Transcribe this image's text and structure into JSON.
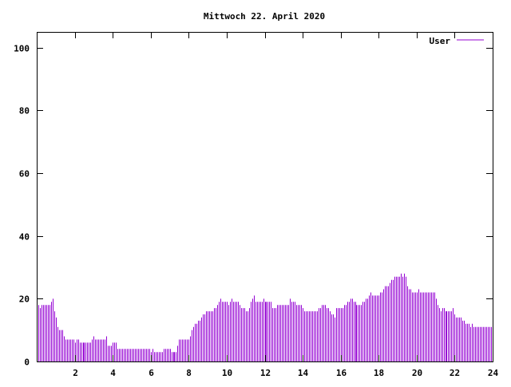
{
  "chart_data": {
    "type": "bar",
    "title": "Mittwoch 22. April 2020",
    "xlabel": "",
    "ylabel": "",
    "xlim": [
      0,
      24
    ],
    "ylim": [
      0,
      105
    ],
    "x_ticks": [
      2,
      4,
      6,
      8,
      10,
      12,
      14,
      16,
      18,
      20,
      22,
      24
    ],
    "y_ticks": [
      0,
      20,
      40,
      60,
      80,
      100
    ],
    "grid": false,
    "legend_position": "top-right",
    "colors": {
      "series": "#9400d3",
      "axes": "#000000",
      "background": "#ffffff"
    },
    "series": [
      {
        "name": "User",
        "points": [
          [
            0.083,
            18
          ],
          [
            0.167,
            17
          ],
          [
            0.25,
            18
          ],
          [
            0.333,
            18
          ],
          [
            0.417,
            18
          ],
          [
            0.5,
            18
          ],
          [
            0.583,
            18
          ],
          [
            0.667,
            18
          ],
          [
            0.75,
            19
          ],
          [
            0.833,
            20
          ],
          [
            0.917,
            16
          ],
          [
            1.0,
            14
          ],
          [
            1.083,
            11
          ],
          [
            1.167,
            10
          ],
          [
            1.25,
            10
          ],
          [
            1.333,
            10
          ],
          [
            1.417,
            8
          ],
          [
            1.5,
            7
          ],
          [
            1.583,
            7
          ],
          [
            1.667,
            7
          ],
          [
            1.75,
            7
          ],
          [
            1.833,
            7
          ],
          [
            1.917,
            7
          ],
          [
            2.0,
            6
          ],
          [
            2.083,
            7
          ],
          [
            2.167,
            7
          ],
          [
            2.25,
            6
          ],
          [
            2.333,
            6
          ],
          [
            2.417,
            6
          ],
          [
            2.5,
            6
          ],
          [
            2.583,
            6
          ],
          [
            2.667,
            6
          ],
          [
            2.75,
            6
          ],
          [
            2.833,
            6
          ],
          [
            2.917,
            7
          ],
          [
            3.0,
            8
          ],
          [
            3.083,
            7
          ],
          [
            3.167,
            7
          ],
          [
            3.25,
            7
          ],
          [
            3.333,
            7
          ],
          [
            3.417,
            7
          ],
          [
            3.5,
            7
          ],
          [
            3.583,
            7
          ],
          [
            3.667,
            8
          ],
          [
            3.75,
            5
          ],
          [
            3.833,
            5
          ],
          [
            3.917,
            5
          ],
          [
            4.0,
            6
          ],
          [
            4.083,
            6
          ],
          [
            4.167,
            6
          ],
          [
            4.25,
            4
          ],
          [
            4.333,
            4
          ],
          [
            4.417,
            4
          ],
          [
            4.5,
            4
          ],
          [
            4.583,
            4
          ],
          [
            4.667,
            4
          ],
          [
            4.75,
            4
          ],
          [
            4.833,
            4
          ],
          [
            4.917,
            4
          ],
          [
            5.0,
            4
          ],
          [
            5.083,
            4
          ],
          [
            5.167,
            4
          ],
          [
            5.25,
            4
          ],
          [
            5.333,
            4
          ],
          [
            5.417,
            4
          ],
          [
            5.5,
            4
          ],
          [
            5.583,
            4
          ],
          [
            5.667,
            4
          ],
          [
            5.75,
            4
          ],
          [
            5.833,
            4
          ],
          [
            5.917,
            4
          ],
          [
            6.0,
            3
          ],
          [
            6.083,
            4
          ],
          [
            6.167,
            3
          ],
          [
            6.25,
            3
          ],
          [
            6.333,
            3
          ],
          [
            6.417,
            3
          ],
          [
            6.5,
            3
          ],
          [
            6.583,
            3
          ],
          [
            6.667,
            4
          ],
          [
            6.75,
            4
          ],
          [
            6.833,
            4
          ],
          [
            6.917,
            4
          ],
          [
            7.0,
            4
          ],
          [
            7.083,
            3
          ],
          [
            7.167,
            3
          ],
          [
            7.25,
            3
          ],
          [
            7.333,
            3
          ],
          [
            7.417,
            5
          ],
          [
            7.5,
            7
          ],
          [
            7.583,
            7
          ],
          [
            7.667,
            7
          ],
          [
            7.75,
            7
          ],
          [
            7.833,
            7
          ],
          [
            7.917,
            7
          ],
          [
            8.0,
            7
          ],
          [
            8.083,
            8
          ],
          [
            8.167,
            10
          ],
          [
            8.25,
            11
          ],
          [
            8.333,
            12
          ],
          [
            8.417,
            12
          ],
          [
            8.5,
            13
          ],
          [
            8.583,
            13
          ],
          [
            8.667,
            14
          ],
          [
            8.75,
            15
          ],
          [
            8.833,
            15
          ],
          [
            8.917,
            16
          ],
          [
            9.0,
            16
          ],
          [
            9.083,
            16
          ],
          [
            9.167,
            16
          ],
          [
            9.25,
            16
          ],
          [
            9.333,
            17
          ],
          [
            9.417,
            17
          ],
          [
            9.5,
            18
          ],
          [
            9.583,
            19
          ],
          [
            9.667,
            20
          ],
          [
            9.75,
            19
          ],
          [
            9.833,
            19
          ],
          [
            9.917,
            19
          ],
          [
            10.0,
            19
          ],
          [
            10.083,
            18
          ],
          [
            10.167,
            19
          ],
          [
            10.25,
            20
          ],
          [
            10.333,
            19
          ],
          [
            10.417,
            19
          ],
          [
            10.5,
            19
          ],
          [
            10.583,
            19
          ],
          [
            10.667,
            18
          ],
          [
            10.75,
            17
          ],
          [
            10.833,
            17
          ],
          [
            10.917,
            17
          ],
          [
            11.0,
            16
          ],
          [
            11.083,
            16
          ],
          [
            11.167,
            17
          ],
          [
            11.25,
            19
          ],
          [
            11.333,
            20
          ],
          [
            11.417,
            21
          ],
          [
            11.5,
            19
          ],
          [
            11.583,
            19
          ],
          [
            11.667,
            19
          ],
          [
            11.75,
            19
          ],
          [
            11.833,
            19
          ],
          [
            11.917,
            20
          ],
          [
            12.0,
            19
          ],
          [
            12.083,
            19
          ],
          [
            12.167,
            19
          ],
          [
            12.25,
            19
          ],
          [
            12.333,
            19
          ],
          [
            12.417,
            17
          ],
          [
            12.5,
            17
          ],
          [
            12.583,
            17
          ],
          [
            12.667,
            18
          ],
          [
            12.75,
            18
          ],
          [
            12.833,
            18
          ],
          [
            12.917,
            18
          ],
          [
            13.0,
            18
          ],
          [
            13.083,
            18
          ],
          [
            13.167,
            18
          ],
          [
            13.25,
            18
          ],
          [
            13.333,
            20
          ],
          [
            13.417,
            19
          ],
          [
            13.5,
            19
          ],
          [
            13.583,
            19
          ],
          [
            13.667,
            18
          ],
          [
            13.75,
            18
          ],
          [
            13.833,
            18
          ],
          [
            13.917,
            18
          ],
          [
            14.0,
            17
          ],
          [
            14.083,
            16
          ],
          [
            14.167,
            16
          ],
          [
            14.25,
            16
          ],
          [
            14.333,
            16
          ],
          [
            14.417,
            16
          ],
          [
            14.5,
            16
          ],
          [
            14.583,
            16
          ],
          [
            14.667,
            16
          ],
          [
            14.75,
            16
          ],
          [
            14.833,
            17
          ],
          [
            14.917,
            17
          ],
          [
            15.0,
            18
          ],
          [
            15.083,
            18
          ],
          [
            15.167,
            18
          ],
          [
            15.25,
            17
          ],
          [
            15.333,
            17
          ],
          [
            15.417,
            16
          ],
          [
            15.5,
            15
          ],
          [
            15.583,
            15
          ],
          [
            15.667,
            14
          ],
          [
            15.75,
            17
          ],
          [
            15.833,
            17
          ],
          [
            15.917,
            17
          ],
          [
            16.0,
            17
          ],
          [
            16.083,
            17
          ],
          [
            16.167,
            18
          ],
          [
            16.25,
            18
          ],
          [
            16.333,
            19
          ],
          [
            16.417,
            19
          ],
          [
            16.5,
            20
          ],
          [
            16.583,
            20
          ],
          [
            16.667,
            19
          ],
          [
            16.75,
            19
          ],
          [
            16.833,
            18
          ],
          [
            16.917,
            18
          ],
          [
            17.0,
            18
          ],
          [
            17.083,
            18
          ],
          [
            17.167,
            19
          ],
          [
            17.25,
            19
          ],
          [
            17.333,
            20
          ],
          [
            17.417,
            20
          ],
          [
            17.5,
            21
          ],
          [
            17.583,
            22
          ],
          [
            17.667,
            21
          ],
          [
            17.75,
            21
          ],
          [
            17.833,
            21
          ],
          [
            17.917,
            21
          ],
          [
            18.0,
            21
          ],
          [
            18.083,
            22
          ],
          [
            18.167,
            22
          ],
          [
            18.25,
            23
          ],
          [
            18.333,
            24
          ],
          [
            18.417,
            24
          ],
          [
            18.5,
            24
          ],
          [
            18.583,
            25
          ],
          [
            18.667,
            26
          ],
          [
            18.75,
            26
          ],
          [
            18.833,
            27
          ],
          [
            18.917,
            27
          ],
          [
            19.0,
            27
          ],
          [
            19.083,
            27
          ],
          [
            19.167,
            28
          ],
          [
            19.25,
            27
          ],
          [
            19.333,
            28
          ],
          [
            19.417,
            27
          ],
          [
            19.5,
            24
          ],
          [
            19.583,
            23
          ],
          [
            19.667,
            23
          ],
          [
            19.75,
            22
          ],
          [
            19.833,
            22
          ],
          [
            19.917,
            22
          ],
          [
            20.0,
            22
          ],
          [
            20.083,
            23
          ],
          [
            20.167,
            22
          ],
          [
            20.25,
            22
          ],
          [
            20.333,
            22
          ],
          [
            20.417,
            22
          ],
          [
            20.5,
            22
          ],
          [
            20.583,
            22
          ],
          [
            20.667,
            22
          ],
          [
            20.75,
            22
          ],
          [
            20.833,
            22
          ],
          [
            20.917,
            22
          ],
          [
            21.0,
            20
          ],
          [
            21.083,
            18
          ],
          [
            21.167,
            17
          ],
          [
            21.25,
            16
          ],
          [
            21.333,
            17
          ],
          [
            21.417,
            17
          ],
          [
            21.5,
            16
          ],
          [
            21.583,
            16
          ],
          [
            21.667,
            16
          ],
          [
            21.75,
            16
          ],
          [
            21.833,
            16
          ],
          [
            21.917,
            17
          ],
          [
            22.0,
            15
          ],
          [
            22.083,
            14
          ],
          [
            22.167,
            14
          ],
          [
            22.25,
            14
          ],
          [
            22.333,
            14
          ],
          [
            22.417,
            13
          ],
          [
            22.5,
            13
          ],
          [
            22.583,
            12
          ],
          [
            22.667,
            12
          ],
          [
            22.75,
            12
          ],
          [
            22.833,
            11
          ],
          [
            22.917,
            12
          ],
          [
            23.0,
            11
          ],
          [
            23.083,
            11
          ],
          [
            23.167,
            11
          ],
          [
            23.25,
            11
          ],
          [
            23.333,
            11
          ],
          [
            23.417,
            11
          ],
          [
            23.5,
            11
          ],
          [
            23.583,
            11
          ],
          [
            23.667,
            11
          ],
          [
            23.75,
            11
          ],
          [
            23.833,
            11
          ],
          [
            23.917,
            11
          ]
        ]
      }
    ]
  }
}
